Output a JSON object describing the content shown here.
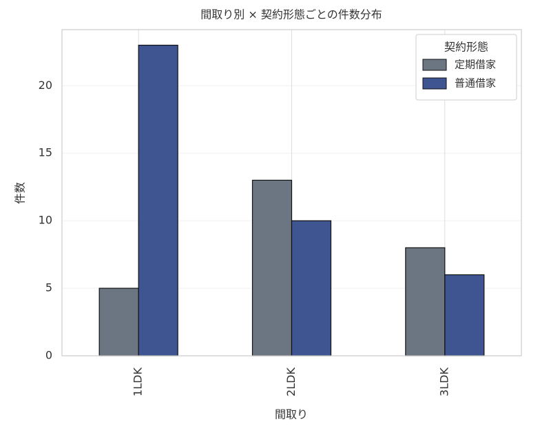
{
  "chart_data": {
    "type": "bar",
    "title": "間取り別 × 契約形態ごとの件数分布",
    "xlabel": "間取り",
    "ylabel": "件数",
    "categories": [
      "1LDK",
      "2LDK",
      "3LDK"
    ],
    "series": [
      {
        "name": "定期借家",
        "color": "#6b7682",
        "values": [
          5,
          13,
          8
        ]
      },
      {
        "name": "普通借家",
        "color": "#3f5591",
        "values": [
          23,
          10,
          6
        ]
      }
    ],
    "legend_title": "契約形態",
    "legend": "upper right",
    "ylim": [
      0,
      24.15
    ],
    "yticks": [
      0,
      5,
      10,
      15,
      20
    ],
    "grid": true
  }
}
